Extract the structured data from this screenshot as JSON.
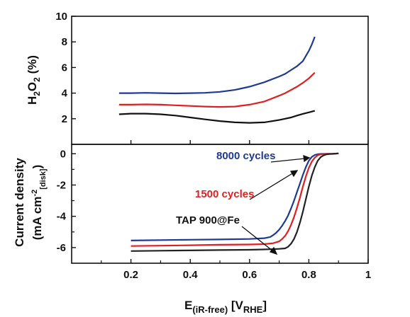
{
  "chart_data": [
    {
      "type": "line",
      "ylabel_main": "H",
      "ylabel_sub": "2",
      "ylabel_mid": "O",
      "ylabel_sub2": "2",
      "ylabel_tail": " (%)",
      "xlim": [
        0,
        1
      ],
      "ylim": [
        0,
        10
      ],
      "yticks": [
        "10",
        "8",
        "6",
        "4",
        "2"
      ],
      "series": [
        {
          "color": "#1f3a93",
          "x": [
            0.16,
            0.2,
            0.25,
            0.3,
            0.35,
            0.4,
            0.45,
            0.5,
            0.55,
            0.6,
            0.65,
            0.7,
            0.72,
            0.74,
            0.76,
            0.78,
            0.79,
            0.8,
            0.81,
            0.82
          ],
          "y": [
            4.0,
            4.0,
            4.02,
            4.0,
            3.98,
            4.0,
            4.02,
            4.1,
            4.25,
            4.5,
            4.85,
            5.3,
            5.5,
            5.8,
            6.1,
            6.5,
            6.9,
            7.3,
            7.8,
            8.4
          ]
        },
        {
          "color": "#e02020",
          "x": [
            0.16,
            0.2,
            0.25,
            0.3,
            0.35,
            0.4,
            0.45,
            0.5,
            0.55,
            0.6,
            0.65,
            0.7,
            0.72,
            0.74,
            0.76,
            0.78,
            0.8,
            0.82
          ],
          "y": [
            3.1,
            3.1,
            3.12,
            3.1,
            3.05,
            3.0,
            2.95,
            2.92,
            2.95,
            3.1,
            3.35,
            3.8,
            4.0,
            4.25,
            4.5,
            4.8,
            5.15,
            5.6
          ]
        },
        {
          "color": "#111111",
          "x": [
            0.16,
            0.2,
            0.25,
            0.3,
            0.35,
            0.4,
            0.45,
            0.5,
            0.55,
            0.6,
            0.65,
            0.7,
            0.72,
            0.74,
            0.76,
            0.78,
            0.8,
            0.82
          ],
          "y": [
            2.35,
            2.4,
            2.4,
            2.35,
            2.25,
            2.1,
            1.95,
            1.82,
            1.72,
            1.68,
            1.72,
            1.9,
            2.0,
            2.1,
            2.25,
            2.38,
            2.5,
            2.62
          ]
        }
      ]
    },
    {
      "type": "line",
      "ylabel_line1": "Current density",
      "ylabel_line2_pre": "(mA cm",
      "ylabel_line2_sup": "-2",
      "ylabel_line2_sub": "[disk]",
      "ylabel_line2_post": ")",
      "xlabel_main": "E",
      "xlabel_sub": "(iR-free)",
      "xlabel_mid": " [V",
      "xlabel_sub2": "RHE",
      "xlabel_tail": "]",
      "xlim": [
        0,
        1
      ],
      "ylim": [
        -7,
        0.6
      ],
      "xticks": [
        "0.2",
        "0.4",
        "0.6",
        "0.8",
        "1"
      ],
      "xtick_values": [
        0.2,
        0.4,
        0.6,
        0.8,
        1.0
      ],
      "yticks": [
        "0",
        "-2",
        "-4",
        "-6"
      ],
      "ytick_values": [
        0,
        -2,
        -4,
        -6
      ],
      "series": [
        {
          "name": "8000 cycles",
          "color": "#1f3a93",
          "x": [
            0.2,
            0.3,
            0.4,
            0.5,
            0.6,
            0.65,
            0.67,
            0.68,
            0.69,
            0.7,
            0.71,
            0.72,
            0.73,
            0.74,
            0.75,
            0.76,
            0.77,
            0.78,
            0.79,
            0.8,
            0.81,
            0.82,
            0.83,
            0.84,
            0.86,
            0.88,
            0.9
          ],
          "y": [
            -5.55,
            -5.52,
            -5.5,
            -5.48,
            -5.45,
            -5.4,
            -5.32,
            -5.2,
            -5.05,
            -4.85,
            -4.6,
            -4.3,
            -3.95,
            -3.5,
            -3.0,
            -2.45,
            -1.9,
            -1.35,
            -0.85,
            -0.45,
            -0.2,
            -0.08,
            -0.03,
            -0.01,
            0.0,
            0.0,
            0.02
          ]
        },
        {
          "name": "1500 cycles",
          "color": "#e02020",
          "x": [
            0.2,
            0.3,
            0.4,
            0.5,
            0.6,
            0.65,
            0.68,
            0.7,
            0.71,
            0.72,
            0.73,
            0.74,
            0.75,
            0.76,
            0.77,
            0.78,
            0.79,
            0.8,
            0.81,
            0.82,
            0.83,
            0.84,
            0.85,
            0.86,
            0.88,
            0.9
          ],
          "y": [
            -5.9,
            -5.88,
            -5.85,
            -5.82,
            -5.8,
            -5.78,
            -5.72,
            -5.6,
            -5.45,
            -5.25,
            -4.95,
            -4.55,
            -4.05,
            -3.45,
            -2.8,
            -2.1,
            -1.45,
            -0.9,
            -0.5,
            -0.25,
            -0.1,
            -0.04,
            -0.02,
            -0.01,
            0.0,
            0.02
          ]
        },
        {
          "name": "TAP 900@Fe",
          "color": "#222222",
          "x": [
            0.2,
            0.3,
            0.4,
            0.5,
            0.6,
            0.65,
            0.68,
            0.7,
            0.72,
            0.73,
            0.74,
            0.75,
            0.76,
            0.77,
            0.78,
            0.79,
            0.8,
            0.81,
            0.82,
            0.83,
            0.84,
            0.85,
            0.86,
            0.87,
            0.88,
            0.9
          ],
          "y": [
            -6.22,
            -6.2,
            -6.18,
            -6.16,
            -6.14,
            -6.12,
            -6.1,
            -6.08,
            -6.05,
            -5.95,
            -5.75,
            -5.45,
            -5.0,
            -4.4,
            -3.7,
            -2.9,
            -2.1,
            -1.4,
            -0.85,
            -0.45,
            -0.22,
            -0.1,
            -0.04,
            -0.02,
            -0.01,
            0.02
          ]
        }
      ],
      "annotations": [
        {
          "text": "8000 cycles",
          "color": "#1f3a93"
        },
        {
          "text": "1500 cycles",
          "color": "#e02020"
        },
        {
          "text": "TAP 900@Fe",
          "color": "#111111"
        }
      ]
    }
  ]
}
